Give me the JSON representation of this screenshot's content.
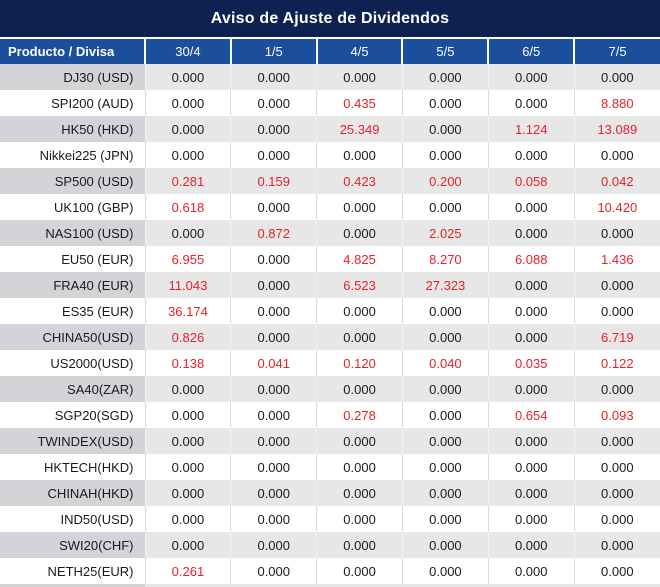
{
  "title": "Aviso de Ajuste de Dividendos",
  "colors": {
    "title_bar_bg": "#0e2150",
    "header_bg": "#1b4e9b",
    "value_red": "#e62129",
    "value_black": "#1a1a1a",
    "row_gray_label": "#d4d4d8",
    "row_gray_value": "#e7e7e7"
  },
  "table": {
    "product_header": "Producto / Divisa",
    "date_headers": [
      "30/4",
      "1/5",
      "4/5",
      "5/5",
      "6/5",
      "7/5"
    ],
    "rows": [
      {
        "product": "DJ30 (USD)",
        "values": [
          {
            "value": "0.000",
            "red": false
          },
          {
            "value": "0.000",
            "red": false
          },
          {
            "value": "0.000",
            "red": false
          },
          {
            "value": "0.000",
            "red": false
          },
          {
            "value": "0.000",
            "red": false
          },
          {
            "value": "0.000",
            "red": false
          }
        ]
      },
      {
        "product": "SPI200 (AUD)",
        "values": [
          {
            "value": "0.000",
            "red": false
          },
          {
            "value": "0.000",
            "red": false
          },
          {
            "value": "0.435",
            "red": true
          },
          {
            "value": "0.000",
            "red": false
          },
          {
            "value": "0.000",
            "red": false
          },
          {
            "value": "8.880",
            "red": true
          }
        ]
      },
      {
        "product": "HK50 (HKD)",
        "values": [
          {
            "value": "0.000",
            "red": false
          },
          {
            "value": "0.000",
            "red": false
          },
          {
            "value": "25.349",
            "red": true
          },
          {
            "value": "0.000",
            "red": false
          },
          {
            "value": "1.124",
            "red": true
          },
          {
            "value": "13.089",
            "red": true
          }
        ]
      },
      {
        "product": "Nikkei225 (JPN)",
        "values": [
          {
            "value": "0.000",
            "red": false
          },
          {
            "value": "0.000",
            "red": false
          },
          {
            "value": "0.000",
            "red": false
          },
          {
            "value": "0.000",
            "red": false
          },
          {
            "value": "0.000",
            "red": false
          },
          {
            "value": "0.000",
            "red": false
          }
        ]
      },
      {
        "product": "SP500 (USD)",
        "values": [
          {
            "value": "0.281",
            "red": true
          },
          {
            "value": "0.159",
            "red": true
          },
          {
            "value": "0.423",
            "red": true
          },
          {
            "value": "0.200",
            "red": true
          },
          {
            "value": "0.058",
            "red": true
          },
          {
            "value": "0.042",
            "red": true
          }
        ]
      },
      {
        "product": "UK100 (GBP)",
        "values": [
          {
            "value": "0.618",
            "red": true
          },
          {
            "value": "0.000",
            "red": false
          },
          {
            "value": "0.000",
            "red": false
          },
          {
            "value": "0.000",
            "red": false
          },
          {
            "value": "0.000",
            "red": false
          },
          {
            "value": "10.420",
            "red": true
          }
        ]
      },
      {
        "product": "NAS100 (USD)",
        "values": [
          {
            "value": "0.000",
            "red": false
          },
          {
            "value": "0.872",
            "red": true
          },
          {
            "value": "0.000",
            "red": false
          },
          {
            "value": "2.025",
            "red": true
          },
          {
            "value": "0.000",
            "red": false
          },
          {
            "value": "0.000",
            "red": false
          }
        ]
      },
      {
        "product": "EU50 (EUR)",
        "values": [
          {
            "value": "6.955",
            "red": true
          },
          {
            "value": "0.000",
            "red": false
          },
          {
            "value": "4.825",
            "red": true
          },
          {
            "value": "8.270",
            "red": true
          },
          {
            "value": "6.088",
            "red": true
          },
          {
            "value": "1.436",
            "red": true
          }
        ]
      },
      {
        "product": "FRA40 (EUR)",
        "values": [
          {
            "value": "11.043",
            "red": true
          },
          {
            "value": "0.000",
            "red": false
          },
          {
            "value": "6.523",
            "red": true
          },
          {
            "value": "27.323",
            "red": true
          },
          {
            "value": "0.000",
            "red": false
          },
          {
            "value": "0.000",
            "red": false
          }
        ]
      },
      {
        "product": "ES35 (EUR)",
        "values": [
          {
            "value": "36.174",
            "red": true
          },
          {
            "value": "0.000",
            "red": false
          },
          {
            "value": "0.000",
            "red": false
          },
          {
            "value": "0.000",
            "red": false
          },
          {
            "value": "0.000",
            "red": false
          },
          {
            "value": "0.000",
            "red": false
          }
        ]
      },
      {
        "product": "CHINA50(USD)",
        "values": [
          {
            "value": "0.826",
            "red": true
          },
          {
            "value": "0.000",
            "red": false
          },
          {
            "value": "0.000",
            "red": false
          },
          {
            "value": "0.000",
            "red": false
          },
          {
            "value": "0.000",
            "red": false
          },
          {
            "value": "6.719",
            "red": true
          }
        ]
      },
      {
        "product": "US2000(USD)",
        "values": [
          {
            "value": "0.138",
            "red": true
          },
          {
            "value": "0.041",
            "red": true
          },
          {
            "value": "0.120",
            "red": true
          },
          {
            "value": "0.040",
            "red": true
          },
          {
            "value": "0.035",
            "red": true
          },
          {
            "value": "0.122",
            "red": true
          }
        ]
      },
      {
        "product": "SA40(ZAR)",
        "values": [
          {
            "value": "0.000",
            "red": false
          },
          {
            "value": "0.000",
            "red": false
          },
          {
            "value": "0.000",
            "red": false
          },
          {
            "value": "0.000",
            "red": false
          },
          {
            "value": "0.000",
            "red": false
          },
          {
            "value": "0.000",
            "red": false
          }
        ]
      },
      {
        "product": "SGP20(SGD)",
        "values": [
          {
            "value": "0.000",
            "red": false
          },
          {
            "value": "0.000",
            "red": false
          },
          {
            "value": "0.278",
            "red": true
          },
          {
            "value": "0.000",
            "red": false
          },
          {
            "value": "0.654",
            "red": true
          },
          {
            "value": "0.093",
            "red": true
          }
        ]
      },
      {
        "product": "TWINDEX(USD)",
        "values": [
          {
            "value": "0.000",
            "red": false
          },
          {
            "value": "0.000",
            "red": false
          },
          {
            "value": "0.000",
            "red": false
          },
          {
            "value": "0.000",
            "red": false
          },
          {
            "value": "0.000",
            "red": false
          },
          {
            "value": "0.000",
            "red": false
          }
        ]
      },
      {
        "product": "HKTECH(HKD)",
        "values": [
          {
            "value": "0.000",
            "red": false
          },
          {
            "value": "0.000",
            "red": false
          },
          {
            "value": "0.000",
            "red": false
          },
          {
            "value": "0.000",
            "red": false
          },
          {
            "value": "0.000",
            "red": false
          },
          {
            "value": "0.000",
            "red": false
          }
        ]
      },
      {
        "product": "CHINAH(HKD)",
        "values": [
          {
            "value": "0.000",
            "red": false
          },
          {
            "value": "0.000",
            "red": false
          },
          {
            "value": "0.000",
            "red": false
          },
          {
            "value": "0.000",
            "red": false
          },
          {
            "value": "0.000",
            "red": false
          },
          {
            "value": "0.000",
            "red": false
          }
        ]
      },
      {
        "product": "IND50(USD)",
        "values": [
          {
            "value": "0.000",
            "red": false
          },
          {
            "value": "0.000",
            "red": false
          },
          {
            "value": "0.000",
            "red": false
          },
          {
            "value": "0.000",
            "red": false
          },
          {
            "value": "0.000",
            "red": false
          },
          {
            "value": "0.000",
            "red": false
          }
        ]
      },
      {
        "product": "SWI20(CHF)",
        "values": [
          {
            "value": "0.000",
            "red": false
          },
          {
            "value": "0.000",
            "red": false
          },
          {
            "value": "0.000",
            "red": false
          },
          {
            "value": "0.000",
            "red": false
          },
          {
            "value": "0.000",
            "red": false
          },
          {
            "value": "0.000",
            "red": false
          }
        ]
      },
      {
        "product": "NETH25(EUR)",
        "values": [
          {
            "value": "0.261",
            "red": true
          },
          {
            "value": "0.000",
            "red": false
          },
          {
            "value": "0.000",
            "red": false
          },
          {
            "value": "0.000",
            "red": false
          },
          {
            "value": "0.000",
            "red": false
          },
          {
            "value": "0.000",
            "red": false
          }
        ]
      }
    ]
  }
}
